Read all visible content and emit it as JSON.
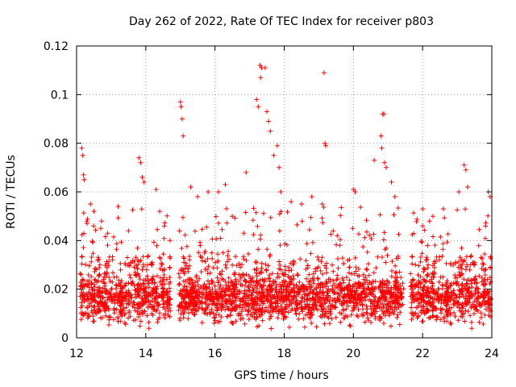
{
  "chart_data": {
    "type": "scatter",
    "title": "Day 262 of 2022, Rate Of TEC Index for receiver p803",
    "xlabel": "GPS time / hours",
    "ylabel": "ROTI / TECUs",
    "xlim": [
      12,
      24
    ],
    "ylim": [
      0,
      0.12
    ],
    "x_ticks": [
      12,
      14,
      16,
      18,
      20,
      22,
      24
    ],
    "x_tick_labels": [
      "12",
      "14",
      "16",
      "18",
      "20",
      "22",
      "24"
    ],
    "y_ticks": [
      0,
      0.02,
      0.04,
      0.06,
      0.08,
      0.1,
      0.12
    ],
    "y_tick_labels": [
      "0",
      "0.02",
      "0.04",
      "0.06",
      "0.08",
      "0.1",
      "0.12"
    ],
    "grid": true,
    "marker": "+",
    "series": [
      {
        "name": "ROTI",
        "color": "#ff0000",
        "points": [
          [
            12.15,
            0.078
          ],
          [
            12.18,
            0.075
          ],
          [
            12.2,
            0.067
          ],
          [
            12.22,
            0.065
          ],
          [
            12.3,
            0.047
          ],
          [
            12.4,
            0.055
          ],
          [
            12.5,
            0.052
          ],
          [
            12.7,
            0.045
          ],
          [
            12.9,
            0.043
          ],
          [
            13.2,
            0.054
          ],
          [
            13.5,
            0.044
          ],
          [
            13.8,
            0.074
          ],
          [
            13.85,
            0.072
          ],
          [
            13.9,
            0.066
          ],
          [
            13.95,
            0.064
          ],
          [
            14.3,
            0.061
          ],
          [
            14.4,
            0.052
          ],
          [
            14.7,
            0.04
          ],
          [
            15.0,
            0.097
          ],
          [
            15.02,
            0.095
          ],
          [
            15.05,
            0.09
          ],
          [
            15.08,
            0.083
          ],
          [
            15.3,
            0.062
          ],
          [
            15.5,
            0.058
          ],
          [
            15.8,
            0.06
          ],
          [
            16.1,
            0.06
          ],
          [
            16.3,
            0.063
          ],
          [
            16.5,
            0.05
          ],
          [
            16.9,
            0.068
          ],
          [
            17.2,
            0.098
          ],
          [
            17.25,
            0.095
          ],
          [
            17.3,
            0.112
          ],
          [
            17.35,
            0.111
          ],
          [
            17.32,
            0.107
          ],
          [
            17.45,
            0.111
          ],
          [
            17.5,
            0.093
          ],
          [
            17.55,
            0.089
          ],
          [
            17.6,
            0.085
          ],
          [
            17.7,
            0.075
          ],
          [
            17.8,
            0.079
          ],
          [
            17.85,
            0.07
          ],
          [
            17.9,
            0.06
          ],
          [
            18.2,
            0.056
          ],
          [
            18.5,
            0.055
          ],
          [
            18.8,
            0.058
          ],
          [
            19.15,
            0.109
          ],
          [
            19.18,
            0.08
          ],
          [
            19.2,
            0.079
          ],
          [
            19.1,
            0.055
          ],
          [
            20.0,
            0.061
          ],
          [
            20.05,
            0.06
          ],
          [
            20.6,
            0.073
          ],
          [
            20.8,
            0.083
          ],
          [
            20.82,
            0.078
          ],
          [
            20.85,
            0.092
          ],
          [
            20.88,
            0.092
          ],
          [
            20.9,
            0.072
          ],
          [
            20.95,
            0.07
          ],
          [
            21.1,
            0.064
          ],
          [
            21.2,
            0.058
          ],
          [
            22.0,
            0.053
          ],
          [
            22.3,
            0.05
          ],
          [
            22.6,
            0.053
          ],
          [
            23.05,
            0.06
          ],
          [
            23.2,
            0.071
          ],
          [
            23.25,
            0.069
          ],
          [
            23.3,
            0.062
          ],
          [
            23.9,
            0.06
          ],
          [
            23.95,
            0.058
          ]
        ],
        "dense_band": {
          "x_segments": [
            [
              12.1,
              14.72
            ],
            [
              14.95,
              21.45
            ],
            [
              21.65,
              23.98
            ]
          ],
          "typical_y": [
            0.006,
            0.032
          ],
          "median_y": 0.016
        }
      }
    ]
  }
}
